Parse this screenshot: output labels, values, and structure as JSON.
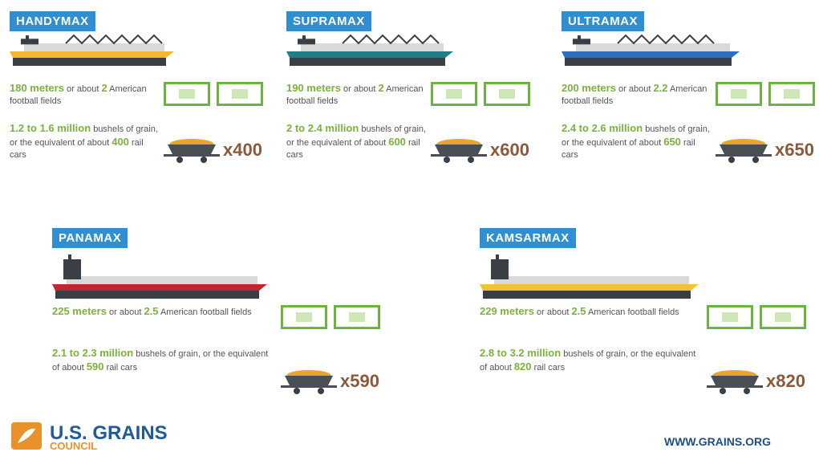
{
  "ships": [
    {
      "name": "HANDYMAX",
      "hull_color": "#f2b731",
      "length": [
        "180 meters",
        " or about ",
        "2",
        " American football fields"
      ],
      "capacity": [
        "1.2 to 1.6 million",
        " bushels of grain, or the equivalent of about ",
        "400",
        " rail cars"
      ],
      "multiplier": "x400"
    },
    {
      "name": "SUPRAMAX",
      "hull_color": "#1f7f86",
      "length": [
        "190 meters",
        " or about ",
        "2",
        " American football fields"
      ],
      "capacity": [
        "2 to 2.4 million",
        " bushels of grain, or the equivalent of about ",
        "600",
        " rail cars"
      ],
      "multiplier": "x600"
    },
    {
      "name": "ULTRAMAX",
      "hull_color": "#2d6fbf",
      "length": [
        "200 meters",
        " or about ",
        "2.2",
        " American football fields"
      ],
      "capacity": [
        "2.4 to 2.6 million",
        " bushels of grain, or the equivalent of about ",
        "650",
        " rail cars"
      ],
      "multiplier": "x650"
    },
    {
      "name": "PANAMAX",
      "hull_color": "#c4262e",
      "length": [
        "225 meters",
        " or about ",
        "2.5",
        " American football fields"
      ],
      "capacity": [
        "2.1 to 2.3 million",
        " bushels of grain, or the equivalent of about ",
        "590",
        " rail cars"
      ],
      "multiplier": "x590"
    },
    {
      "name": "KAMSARMAX",
      "hull_color": "#f2c230",
      "length": [
        "229 meters",
        " or about ",
        "2.5",
        " American football fields"
      ],
      "capacity": [
        "2.8 to 3.2 million",
        " bushels of grain, or the equivalent of about ",
        "820",
        " rail cars"
      ],
      "multiplier": "x820"
    }
  ],
  "footer": {
    "logo_name": "U.S. GRAINS",
    "logo_sub": "COUNCIL",
    "url": "WWW.GRAINS.ORG"
  }
}
